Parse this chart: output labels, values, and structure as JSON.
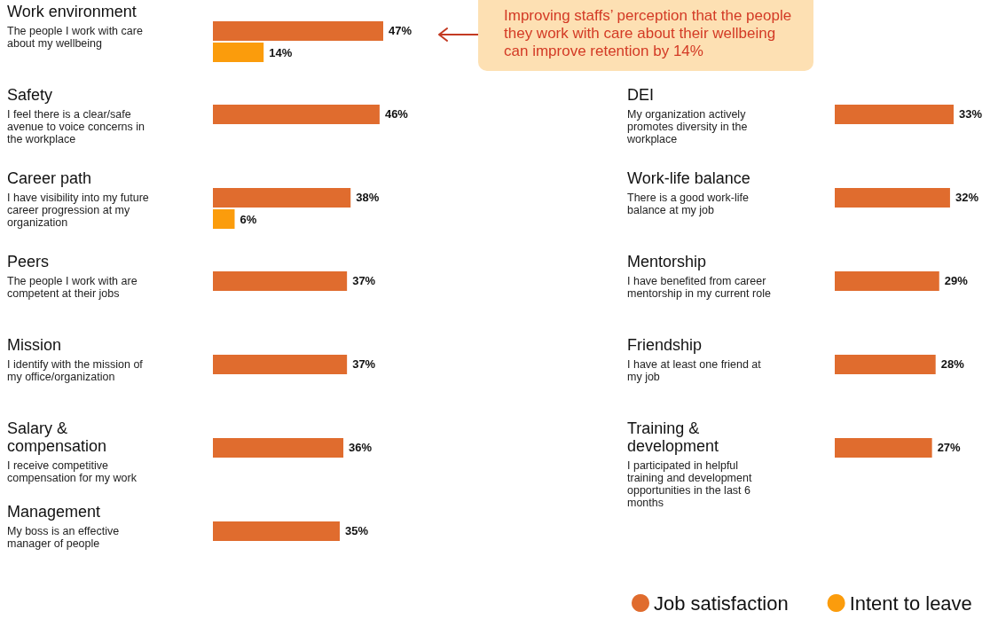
{
  "chart_data": [
    {
      "type": "bar",
      "orientation": "horizontal",
      "legend": false,
      "categories": [
        "Work environment\nThe people I work with care about my wellbeing",
        "Safety\nI feel there is a clear/safe avenue to voice concerns in the workplace",
        "Career path\nI have visibility into my future career progression at my organization",
        "Peers\nThe people I work with are competent at their jobs",
        "Mission\nI identify with the mission of my office/organization",
        "Salary & compensation\nI receive competitive compensation for my work",
        "Management\nMy boss is an effective manager of people"
      ],
      "series": [
        {
          "color": "#e06c2e",
          "values": [
            47,
            46,
            38,
            37,
            37,
            36,
            35
          ],
          "value_labels": [
            "47%",
            "46%",
            "38%",
            "37%",
            "37%",
            "36%",
            "35%"
          ]
        },
        {
          "color": "#fb9c0c",
          "values": [
            14,
            null,
            6,
            null,
            null,
            null,
            null
          ],
          "value_labels": [
            "14%",
            null,
            "6%",
            null,
            null,
            null,
            null
          ]
        }
      ],
      "annotations": [
        "Improving staffs’ perception that the people they work with care about their wellbeing can improve retention by 14%"
      ]
    },
    {
      "type": "bar",
      "orientation": "horizontal",
      "legend": "bottom",
      "categories": [
        "DEI\nMy organization actively promotes diversity in the workplace",
        "Work-life balance\nThere is a good work-life balance at my job",
        "Mentorship\nI have benefited from career mentorship in my current role",
        "Friendship\nI have at least one friend at my job",
        "Training & development\nI participated in helpful training and development opportunities in the last 6 months"
      ],
      "series": [
        {
          "name": "Job satisfaction",
          "color": "#e06c2e",
          "values": [
            33,
            32,
            29,
            28,
            27
          ],
          "value_labels": [
            "33%",
            "32%",
            "29%",
            "28%",
            "27%"
          ]
        },
        {
          "name": "Intent to leave",
          "color": "#fb9c0c",
          "values": [
            null,
            null,
            null,
            null,
            null
          ],
          "value_labels": [
            null,
            null,
            null,
            null,
            null
          ]
        }
      ]
    }
  ]
}
